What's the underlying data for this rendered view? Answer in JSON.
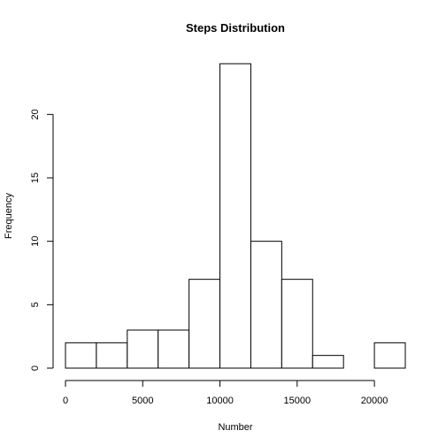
{
  "chart_data": {
    "type": "bar",
    "title": "Steps Distribution",
    "xlabel": "Number",
    "ylabel": "Frequency",
    "bins": [
      {
        "start": 0,
        "end": 2000,
        "count": 2
      },
      {
        "start": 2000,
        "end": 4000,
        "count": 2
      },
      {
        "start": 4000,
        "end": 6000,
        "count": 3
      },
      {
        "start": 6000,
        "end": 8000,
        "count": 3
      },
      {
        "start": 8000,
        "end": 10000,
        "count": 7
      },
      {
        "start": 10000,
        "end": 12000,
        "count": 24
      },
      {
        "start": 12000,
        "end": 14000,
        "count": 10
      },
      {
        "start": 14000,
        "end": 16000,
        "count": 7
      },
      {
        "start": 16000,
        "end": 18000,
        "count": 1
      },
      {
        "start": 18000,
        "end": 20000,
        "count": 0
      },
      {
        "start": 20000,
        "end": 22000,
        "count": 2
      }
    ],
    "xticks": [
      "0",
      "5000",
      "10000",
      "15000",
      "20000"
    ],
    "yticks": [
      "0",
      "5",
      "10",
      "15",
      "20"
    ],
    "xlim": [
      0,
      22000
    ],
    "ylim": [
      0,
      24
    ],
    "grid": false,
    "legend": "none"
  }
}
